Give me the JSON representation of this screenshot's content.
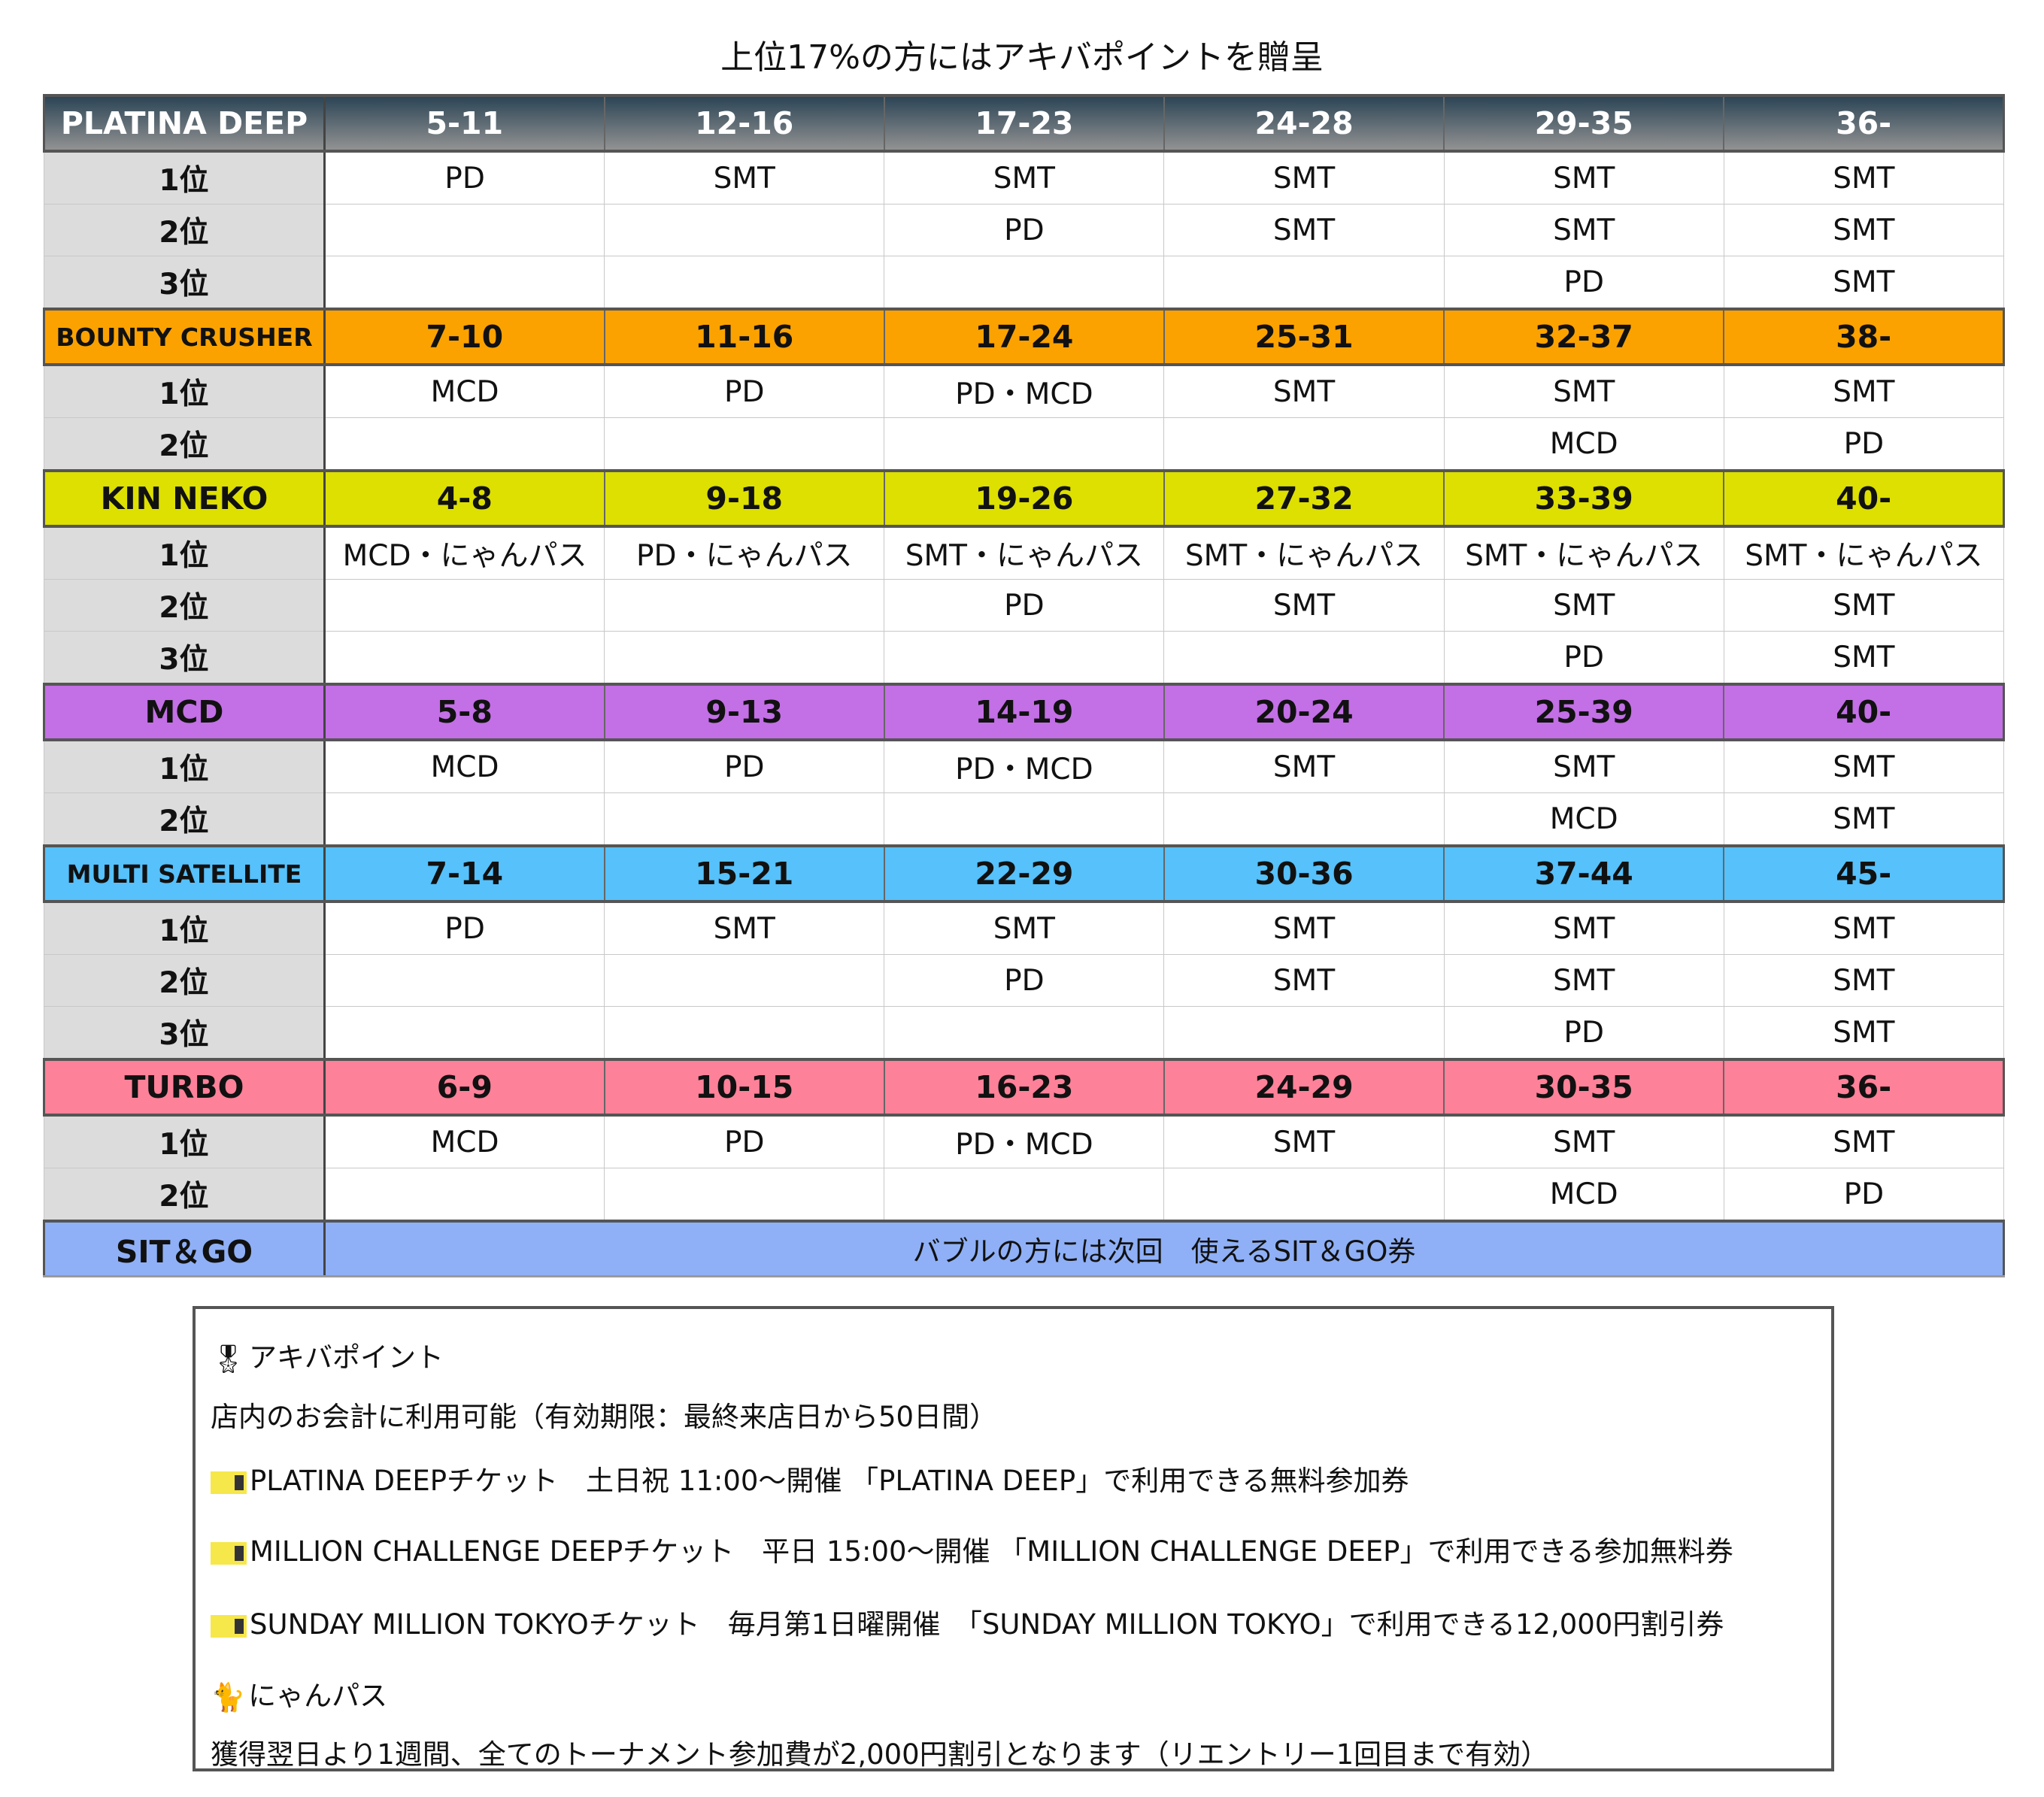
{
  "title": "上位17%の方にはアキバポイントを贈呈",
  "sections": [
    {
      "name": "PLATINA DEEP",
      "color": "#2c4556",
      "style": "dark",
      "ranges": [
        "5-11",
        "12-16",
        "17-23",
        "24-28",
        "29-35",
        "36-"
      ],
      "rows": [
        {
          "rank": "1位",
          "cells": [
            "PD",
            "SMT",
            "SMT",
            "SMT",
            "SMT",
            "SMT"
          ]
        },
        {
          "rank": "2位",
          "cells": [
            "",
            "",
            "PD",
            "SMT",
            "SMT",
            "SMT"
          ]
        },
        {
          "rank": "3位",
          "cells": [
            "",
            "",
            "",
            "",
            "PD",
            "SMT"
          ]
        }
      ]
    },
    {
      "name": "BOUNTY CRUSHER",
      "color": "#fba200",
      "ranges": [
        "7-10",
        "11-16",
        "17-24",
        "25-31",
        "32-37",
        "38-"
      ],
      "rows": [
        {
          "rank": "1位",
          "cells": [
            "MCD",
            "PD",
            "PD・MCD",
            "SMT",
            "SMT",
            "SMT"
          ]
        },
        {
          "rank": "2位",
          "cells": [
            "",
            "",
            "",
            "",
            "MCD",
            "PD"
          ]
        }
      ]
    },
    {
      "name": "KIN NEKO",
      "color": "#dde000",
      "ranges": [
        "4-8",
        "9-18",
        "19-26",
        "27-32",
        "33-39",
        "40-"
      ],
      "rows": [
        {
          "rank": "1位",
          "cells": [
            "MCD・にゃんパス",
            "PD・にゃんパス",
            "SMT・にゃんパス",
            "SMT・にゃんパス",
            "SMT・にゃんパス",
            "SMT・にゃんパス"
          ]
        },
        {
          "rank": "2位",
          "cells": [
            "",
            "",
            "PD",
            "SMT",
            "SMT",
            "SMT"
          ]
        },
        {
          "rank": "3位",
          "cells": [
            "",
            "",
            "",
            "",
            "PD",
            "SMT"
          ]
        }
      ]
    },
    {
      "name": "MCD",
      "color": "#c36fe6",
      "ranges": [
        "5-8",
        "9-13",
        "14-19",
        "20-24",
        "25-39",
        "40-"
      ],
      "rows": [
        {
          "rank": "1位",
          "cells": [
            "MCD",
            "PD",
            "PD・MCD",
            "SMT",
            "SMT",
            "SMT"
          ]
        },
        {
          "rank": "2位",
          "cells": [
            "",
            "",
            "",
            "",
            "MCD",
            "SMT"
          ]
        }
      ]
    },
    {
      "name": "MULTI SATELLITE",
      "color": "#56c1fb",
      "ranges": [
        "7-14",
        "15-21",
        "22-29",
        "30-36",
        "37-44",
        "45-"
      ],
      "rows": [
        {
          "rank": "1位",
          "cells": [
            "PD",
            "SMT",
            "SMT",
            "SMT",
            "SMT",
            "SMT"
          ]
        },
        {
          "rank": "2位",
          "cells": [
            "",
            "",
            "PD",
            "SMT",
            "SMT",
            "SMT"
          ]
        },
        {
          "rank": "3位",
          "cells": [
            "",
            "",
            "",
            "",
            "PD",
            "SMT"
          ]
        }
      ]
    },
    {
      "name": "TURBO",
      "color": "#fd8199",
      "ranges": [
        "6-9",
        "10-15",
        "16-23",
        "24-29",
        "30-35",
        "36-"
      ],
      "rows": [
        {
          "rank": "1位",
          "cells": [
            "MCD",
            "PD",
            "PD・MCD",
            "SMT",
            "SMT",
            "SMT"
          ]
        },
        {
          "rank": "2位",
          "cells": [
            "",
            "",
            "",
            "",
            "MCD",
            "PD"
          ]
        }
      ]
    }
  ],
  "sit_go": {
    "name": "SIT＆GO",
    "text": "バブルの方には次回　使えるSIT＆GO券",
    "color": "#8fb0f6"
  },
  "legend": {
    "lines": [
      {
        "icon": "medal-icon",
        "text": "アキバポイント"
      },
      {
        "icon": "",
        "text": "店内のお会計に利用可能（有効期限：最終来店日から50日間）"
      },
      {
        "icon": "ticket-icon",
        "text": "PLATINA DEEPチケット　土日祝 11:00〜開催 「PLATINA DEEP」で利用できる無料参加券"
      },
      {
        "icon": "ticket-icon",
        "text": "MILLION CHALLENGE DEEPチケット　平日 15:00〜開催 「MILLION CHALLENGE DEEP」で利用できる参加無料券"
      },
      {
        "icon": "ticket-icon",
        "text": "SUNDAY MILLION TOKYOチケット　毎月第1日曜開催　「SUNDAY MILLION TOKYO」で利用できる12,000円割引券"
      },
      {
        "icon": "cat-icon",
        "text": "にゃんパス"
      },
      {
        "icon": "",
        "text": "獲得翌日より1週間、全てのトーナメント参加費が2,000円割引となります（リエントリー1回目まで有効）"
      }
    ]
  }
}
